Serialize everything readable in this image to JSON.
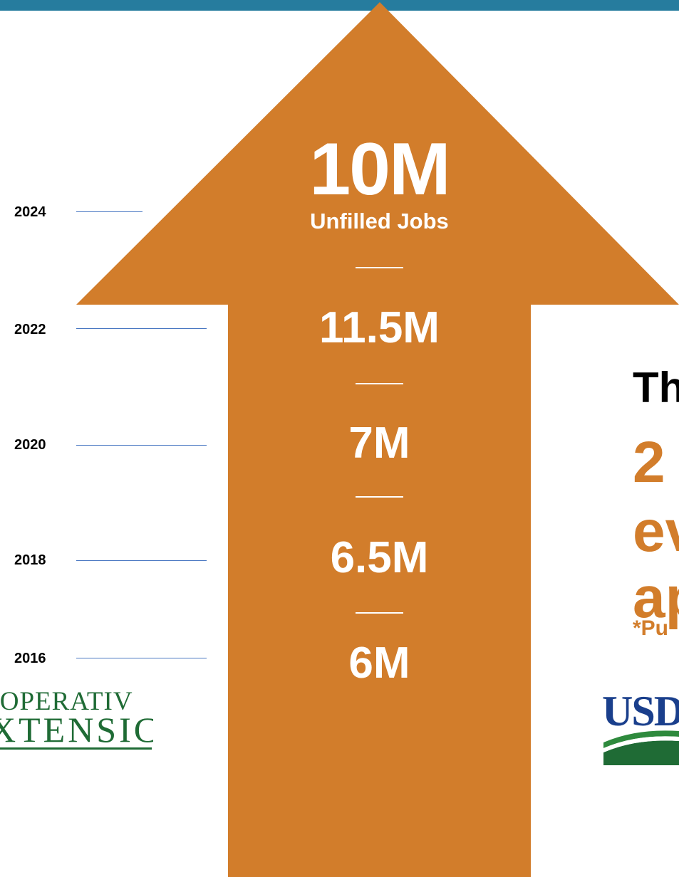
{
  "colors": {
    "top_bar": "#267c9e",
    "arrow": "#d27d2b",
    "tick_line": "#4a78c2",
    "year_text": "#000000",
    "value_text": "#ffffff",
    "right_heading": "#000000",
    "right_accent": "#d27d2b",
    "coop_green": "#1f6b35",
    "usda_blue": "#1a3f8c",
    "usda_green": "#2e8a3d"
  },
  "timeline": {
    "years": [
      "2024",
      "2022",
      "2020",
      "2018",
      "2016"
    ]
  },
  "arrow": {
    "headline": "10M",
    "headline_caption": "Unfilled Jobs",
    "values": [
      "11.5M",
      "7M",
      "6.5M",
      "6M"
    ]
  },
  "right_panel": {
    "line1": "Th",
    "line2": "2",
    "line3": "ev",
    "line4": "ap",
    "footnote": "*Pu"
  },
  "logos": {
    "coop_line1": "OOPERATIV",
    "coop_line2": "XTENSIC",
    "usda_text": "USD"
  }
}
